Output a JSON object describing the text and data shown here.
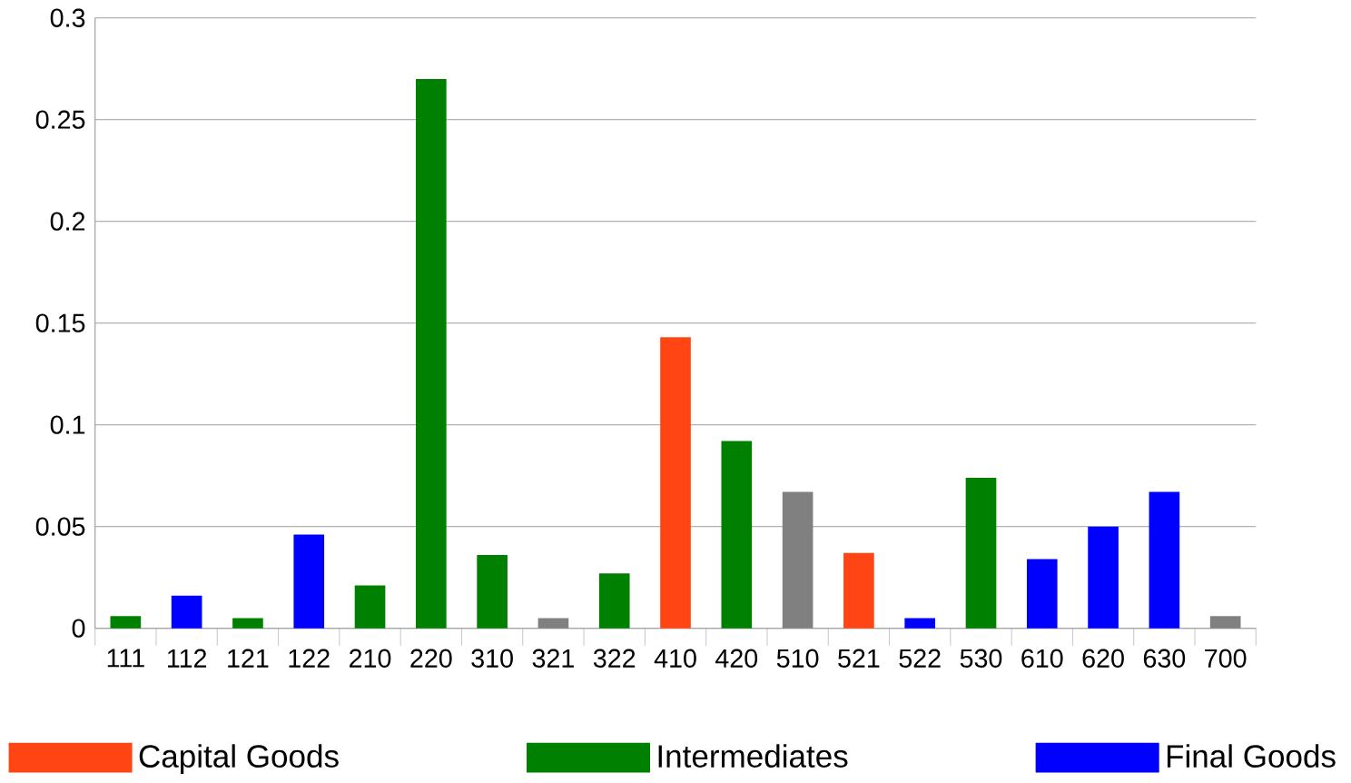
{
  "chart_data": {
    "type": "bar",
    "categories": [
      "111",
      "112",
      "121",
      "122",
      "210",
      "220",
      "310",
      "321",
      "322",
      "410",
      "420",
      "510",
      "521",
      "522",
      "530",
      "610",
      "620",
      "630",
      "700"
    ],
    "series": [
      {
        "name": "Capital Goods",
        "color": "#ff4513",
        "values": [
          null,
          null,
          null,
          null,
          null,
          null,
          null,
          null,
          null,
          0.143,
          null,
          null,
          0.037,
          null,
          null,
          null,
          null,
          null,
          null
        ]
      },
      {
        "name": "Intermediates",
        "color": "#008000",
        "values": [
          0.006,
          null,
          0.005,
          null,
          0.021,
          0.27,
          0.036,
          null,
          0.027,
          null,
          0.092,
          null,
          null,
          null,
          0.074,
          null,
          null,
          null,
          null
        ]
      },
      {
        "name": "Final Goods",
        "color": "#0000ff",
        "values": [
          null,
          0.016,
          null,
          0.046,
          null,
          null,
          null,
          null,
          null,
          null,
          null,
          null,
          null,
          0.005,
          null,
          0.034,
          0.05,
          0.067,
          null
        ]
      },
      {
        "color": "#808080",
        "values": [
          null,
          null,
          null,
          null,
          null,
          null,
          null,
          0.005,
          null,
          null,
          null,
          0.067,
          null,
          null,
          null,
          null,
          null,
          null,
          0.006
        ]
      }
    ],
    "ylim": [
      0,
      0.3
    ],
    "yticks": [
      0,
      0.05,
      0.1,
      0.15,
      0.2,
      0.25,
      0.3
    ],
    "grid": "y",
    "legend": "bottom"
  }
}
